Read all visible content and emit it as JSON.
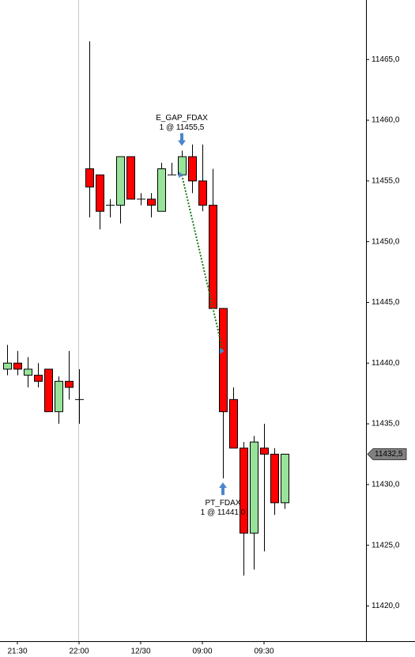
{
  "chart_data": {
    "type": "candlestick",
    "categories": [
      null,
      "21:30",
      null,
      null,
      null,
      null,
      null,
      "22:00",
      null,
      null,
      null,
      null,
      null,
      "12/30",
      null,
      null,
      null,
      null,
      null,
      "09:00",
      null,
      null,
      null,
      null,
      null,
      "09:30",
      null,
      null
    ],
    "open": [
      11439.5,
      11440.0,
      11439.0,
      11439.0,
      11439.5,
      11436.0,
      11438.5,
      11437.0,
      11456.0,
      11455.5,
      11453.0,
      11453.0,
      11457.0,
      11453.5,
      11453.5,
      11452.5,
      11455.5,
      11455.5,
      11457.0,
      11455.0,
      11453.0,
      11444.5,
      11437.0,
      11433.0,
      11426.0,
      11433.0,
      11432.5,
      11428.5
    ],
    "high": [
      11441.5,
      11441.0,
      11440.5,
      11440.0,
      11439.5,
      11438.9,
      11441.0,
      11439.5,
      11466.5,
      11455.5,
      11453.5,
      11457.0,
      11457.0,
      11454.0,
      11454.0,
      11456.5,
      11456.5,
      11457.5,
      11458.0,
      11458.0,
      11456.0,
      11444.5,
      11438.0,
      11433.5,
      11434.0,
      11435.0,
      11433.0,
      11432.5
    ],
    "low": [
      11439.0,
      11439.0,
      11438.0,
      11438.0,
      11436.0,
      11435.0,
      11437.0,
      11435.0,
      11452.0,
      11451.0,
      11452.0,
      11451.5,
      11453.5,
      11453.0,
      11452.0,
      11452.5,
      11455.5,
      11455.5,
      11454.0,
      11452.5,
      11444.5,
      11430.5,
      11433.0,
      11422.5,
      11423.0,
      11424.5,
      11427.5,
      11428.0
    ],
    "close": [
      11440.0,
      11439.5,
      11439.5,
      11438.5,
      11436.0,
      11438.5,
      11438.0,
      11437.0,
      11454.5,
      11452.5,
      11453.0,
      11457.0,
      11453.5,
      11453.5,
      11453.0,
      11456.0,
      11455.5,
      11457.0,
      11455.0,
      11453.0,
      11444.5,
      11436.0,
      11433.0,
      11426.0,
      11433.5,
      11432.5,
      11428.5,
      11432.5
    ],
    "up_color": "#98e39a",
    "down_color": "#ff0000",
    "ylim": [
      11417.1,
      11469.9
    ],
    "yticks": [
      {
        "value": 11420,
        "label": "11420,0"
      },
      {
        "value": 11425,
        "label": "11425,0"
      },
      {
        "value": 11430,
        "label": "11430,0"
      },
      {
        "value": 11435,
        "label": "11435,0"
      },
      {
        "value": 11440,
        "label": "11440,0"
      },
      {
        "value": 11445,
        "label": "11445,0"
      },
      {
        "value": 11450,
        "label": "11450,0"
      },
      {
        "value": 11455,
        "label": "11455,0"
      },
      {
        "value": 11460,
        "label": "11460,0"
      },
      {
        "value": 11465,
        "label": "11465,0"
      }
    ],
    "last_price": {
      "value": 11432.5,
      "label": "11432,5"
    },
    "trades": [
      {
        "name": "E_GAP_FDAX",
        "label": "1 @ 11455,5",
        "index": 17,
        "price": 11455.5,
        "side": "entry"
      },
      {
        "name": "PT_FDAX",
        "label": "1 @ 11441,0",
        "index": 21,
        "price": 11441.0,
        "side": "exit"
      }
    ],
    "trade_line_color": "#1a7a1a",
    "marker_color": "#4a86c8"
  }
}
